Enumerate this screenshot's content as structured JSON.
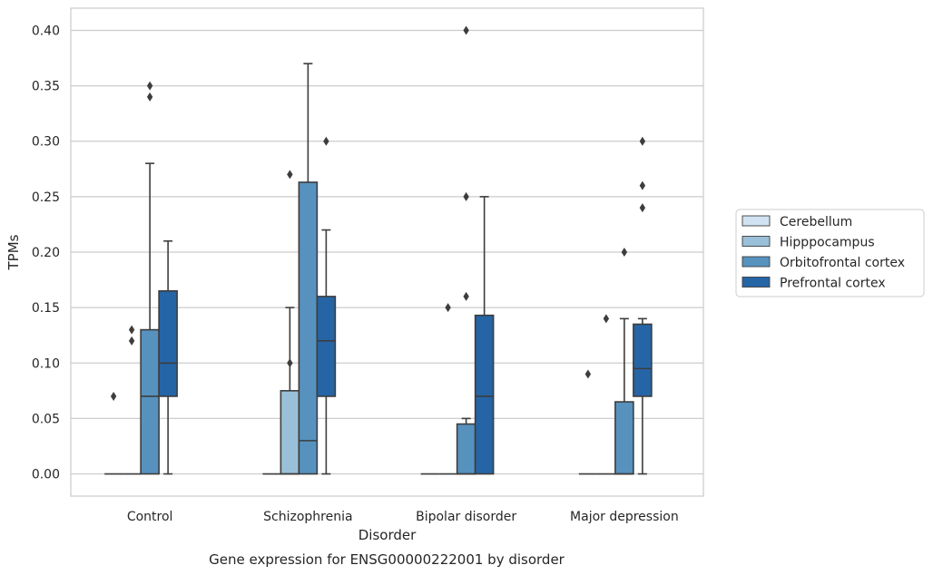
{
  "chart_data": {
    "type": "box",
    "title": "",
    "caption": "Gene expression for ENSG00000222001 by disorder",
    "xlabel": "Disorder",
    "ylabel": "TPMs",
    "ylim": [
      -0.02,
      0.42
    ],
    "yticks": [
      "0.00",
      "0.05",
      "0.10",
      "0.15",
      "0.20",
      "0.25",
      "0.30",
      "0.35",
      "0.40"
    ],
    "grid": "horizontal",
    "legend_position": "right",
    "categories": [
      "Control",
      "Schizophrenia",
      "Bipolar disorder",
      "Major depression"
    ],
    "series": [
      {
        "name": "Cerebellum",
        "color": "#d1e2f2",
        "boxes": [
          {
            "q1": 0,
            "median": 0,
            "q3": 0,
            "whisker_low": 0,
            "whisker_high": 0,
            "outliers": [
              0.07
            ]
          },
          {
            "q1": 0,
            "median": 0,
            "q3": 0,
            "whisker_low": 0,
            "whisker_high": 0,
            "outliers": []
          },
          {
            "q1": 0,
            "median": 0,
            "q3": 0,
            "whisker_low": 0,
            "whisker_high": 0,
            "outliers": []
          },
          {
            "q1": 0,
            "median": 0,
            "q3": 0,
            "whisker_low": 0,
            "whisker_high": 0,
            "outliers": [
              0.09
            ]
          }
        ]
      },
      {
        "name": "Hipppocampus",
        "color": "#9ac0d9",
        "boxes": [
          {
            "q1": 0,
            "median": 0,
            "q3": 0,
            "whisker_low": 0,
            "whisker_high": 0,
            "outliers": [
              0.12,
              0.13
            ]
          },
          {
            "q1": 0,
            "median": 0,
            "q3": 0.075,
            "whisker_low": 0,
            "whisker_high": 0.15,
            "outliers": [
              0.1,
              0.27
            ]
          },
          {
            "q1": 0,
            "median": 0,
            "q3": 0,
            "whisker_low": 0,
            "whisker_high": 0,
            "outliers": [
              0.15
            ]
          },
          {
            "q1": 0,
            "median": 0,
            "q3": 0,
            "whisker_low": 0,
            "whisker_high": 0,
            "outliers": [
              0.14
            ]
          }
        ]
      },
      {
        "name": "Orbitofrontal cortex",
        "color": "#5792bf",
        "boxes": [
          {
            "q1": 0,
            "median": 0.07,
            "q3": 0.13,
            "whisker_low": 0,
            "whisker_high": 0.28,
            "outliers": [
              0.34,
              0.35
            ]
          },
          {
            "q1": 0,
            "median": 0.03,
            "q3": 0.263,
            "whisker_low": 0,
            "whisker_high": 0.37,
            "outliers": []
          },
          {
            "q1": 0,
            "median": 0,
            "q3": 0.045,
            "whisker_low": 0,
            "whisker_high": 0.05,
            "outliers": [
              0.16,
              0.25,
              0.4
            ]
          },
          {
            "q1": 0,
            "median": 0,
            "q3": 0.065,
            "whisker_low": 0,
            "whisker_high": 0.14,
            "outliers": [
              0.2
            ]
          }
        ]
      },
      {
        "name": "Prefrontal cortex",
        "color": "#2565a6",
        "boxes": [
          {
            "q1": 0.07,
            "median": 0.1,
            "q3": 0.165,
            "whisker_low": 0,
            "whisker_high": 0.21,
            "outliers": []
          },
          {
            "q1": 0.07,
            "median": 0.12,
            "q3": 0.16,
            "whisker_low": 0,
            "whisker_high": 0.22,
            "outliers": [
              0.3
            ]
          },
          {
            "q1": 0,
            "median": 0.07,
            "q3": 0.143,
            "whisker_low": 0,
            "whisker_high": 0.25,
            "outliers": []
          },
          {
            "q1": 0.07,
            "median": 0.095,
            "q3": 0.135,
            "whisker_low": 0,
            "whisker_high": 0.14,
            "outliers": [
              0.24,
              0.26,
              0.3
            ]
          }
        ]
      }
    ]
  }
}
